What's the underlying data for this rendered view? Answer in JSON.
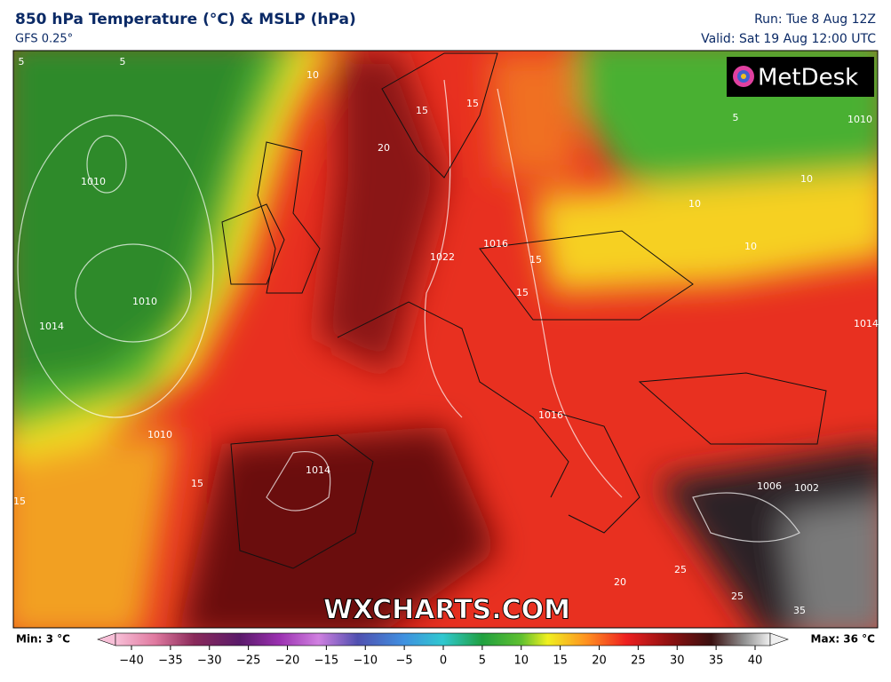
{
  "header": {
    "title": "850 hPa Temperature (°C) & MSLP (hPa)",
    "model": "GFS 0.25°",
    "run": "Run: Tue 8 Aug 12Z",
    "valid": "Valid: Sat 19 Aug 12:00 UTC"
  },
  "logo": "MetDesk",
  "watermark": "WXCHARTS.COM",
  "map_labels": [
    "5",
    "5",
    "10",
    "1010",
    "1010",
    "1014",
    "15",
    "20",
    "15",
    "15",
    "1022",
    "1016",
    "15",
    "15",
    "10",
    "10",
    "10",
    "5",
    "1010",
    "1014",
    "1010",
    "15",
    "1014",
    "1016",
    "1006",
    "1002",
    "20",
    "25",
    "25",
    "35"
  ],
  "legend": {
    "min": "Min: 3 °C",
    "max": "Max: 36 °C",
    "ticks": [
      "−40",
      "−35",
      "−30",
      "−25",
      "−20",
      "−15",
      "−10",
      "−5",
      "0",
      "5",
      "10",
      "15",
      "20",
      "25",
      "30",
      "35",
      "40"
    ]
  }
}
